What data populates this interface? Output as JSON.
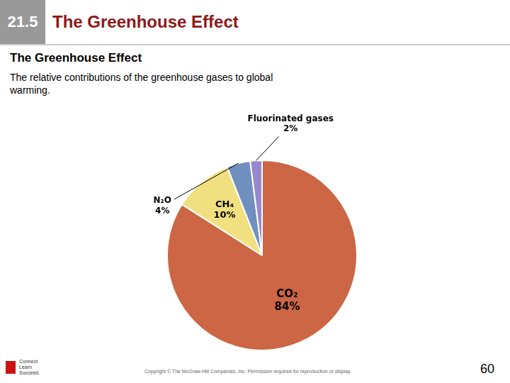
{
  "chart_data": {
    "type": "pie",
    "title": "The Greenhouse Effect",
    "subtitle": "The Greenhouse Effect",
    "annotations": [
      "21.5",
      "The relative contributions of the greenhouse gases to global\nwarming.",
      "Copyright © The McGraw-Hill Companies, Inc. Permission required for reproduction or display.",
      "Connect",
      "Learn",
      "Succeed.",
      "60"
    ],
    "categories": [
      "CO₂",
      "CH₄",
      "N₂O",
      "Fluorinated gases"
    ],
    "values": [
      84,
      10,
      4,
      2
    ],
    "value_labels": [
      "84%",
      "10%",
      "4%",
      "2%"
    ],
    "colors": [
      "#CC6644",
      "#F0E080",
      "#7090C0",
      "#9988CC"
    ],
    "data_labels": true,
    "legend": false
  }
}
